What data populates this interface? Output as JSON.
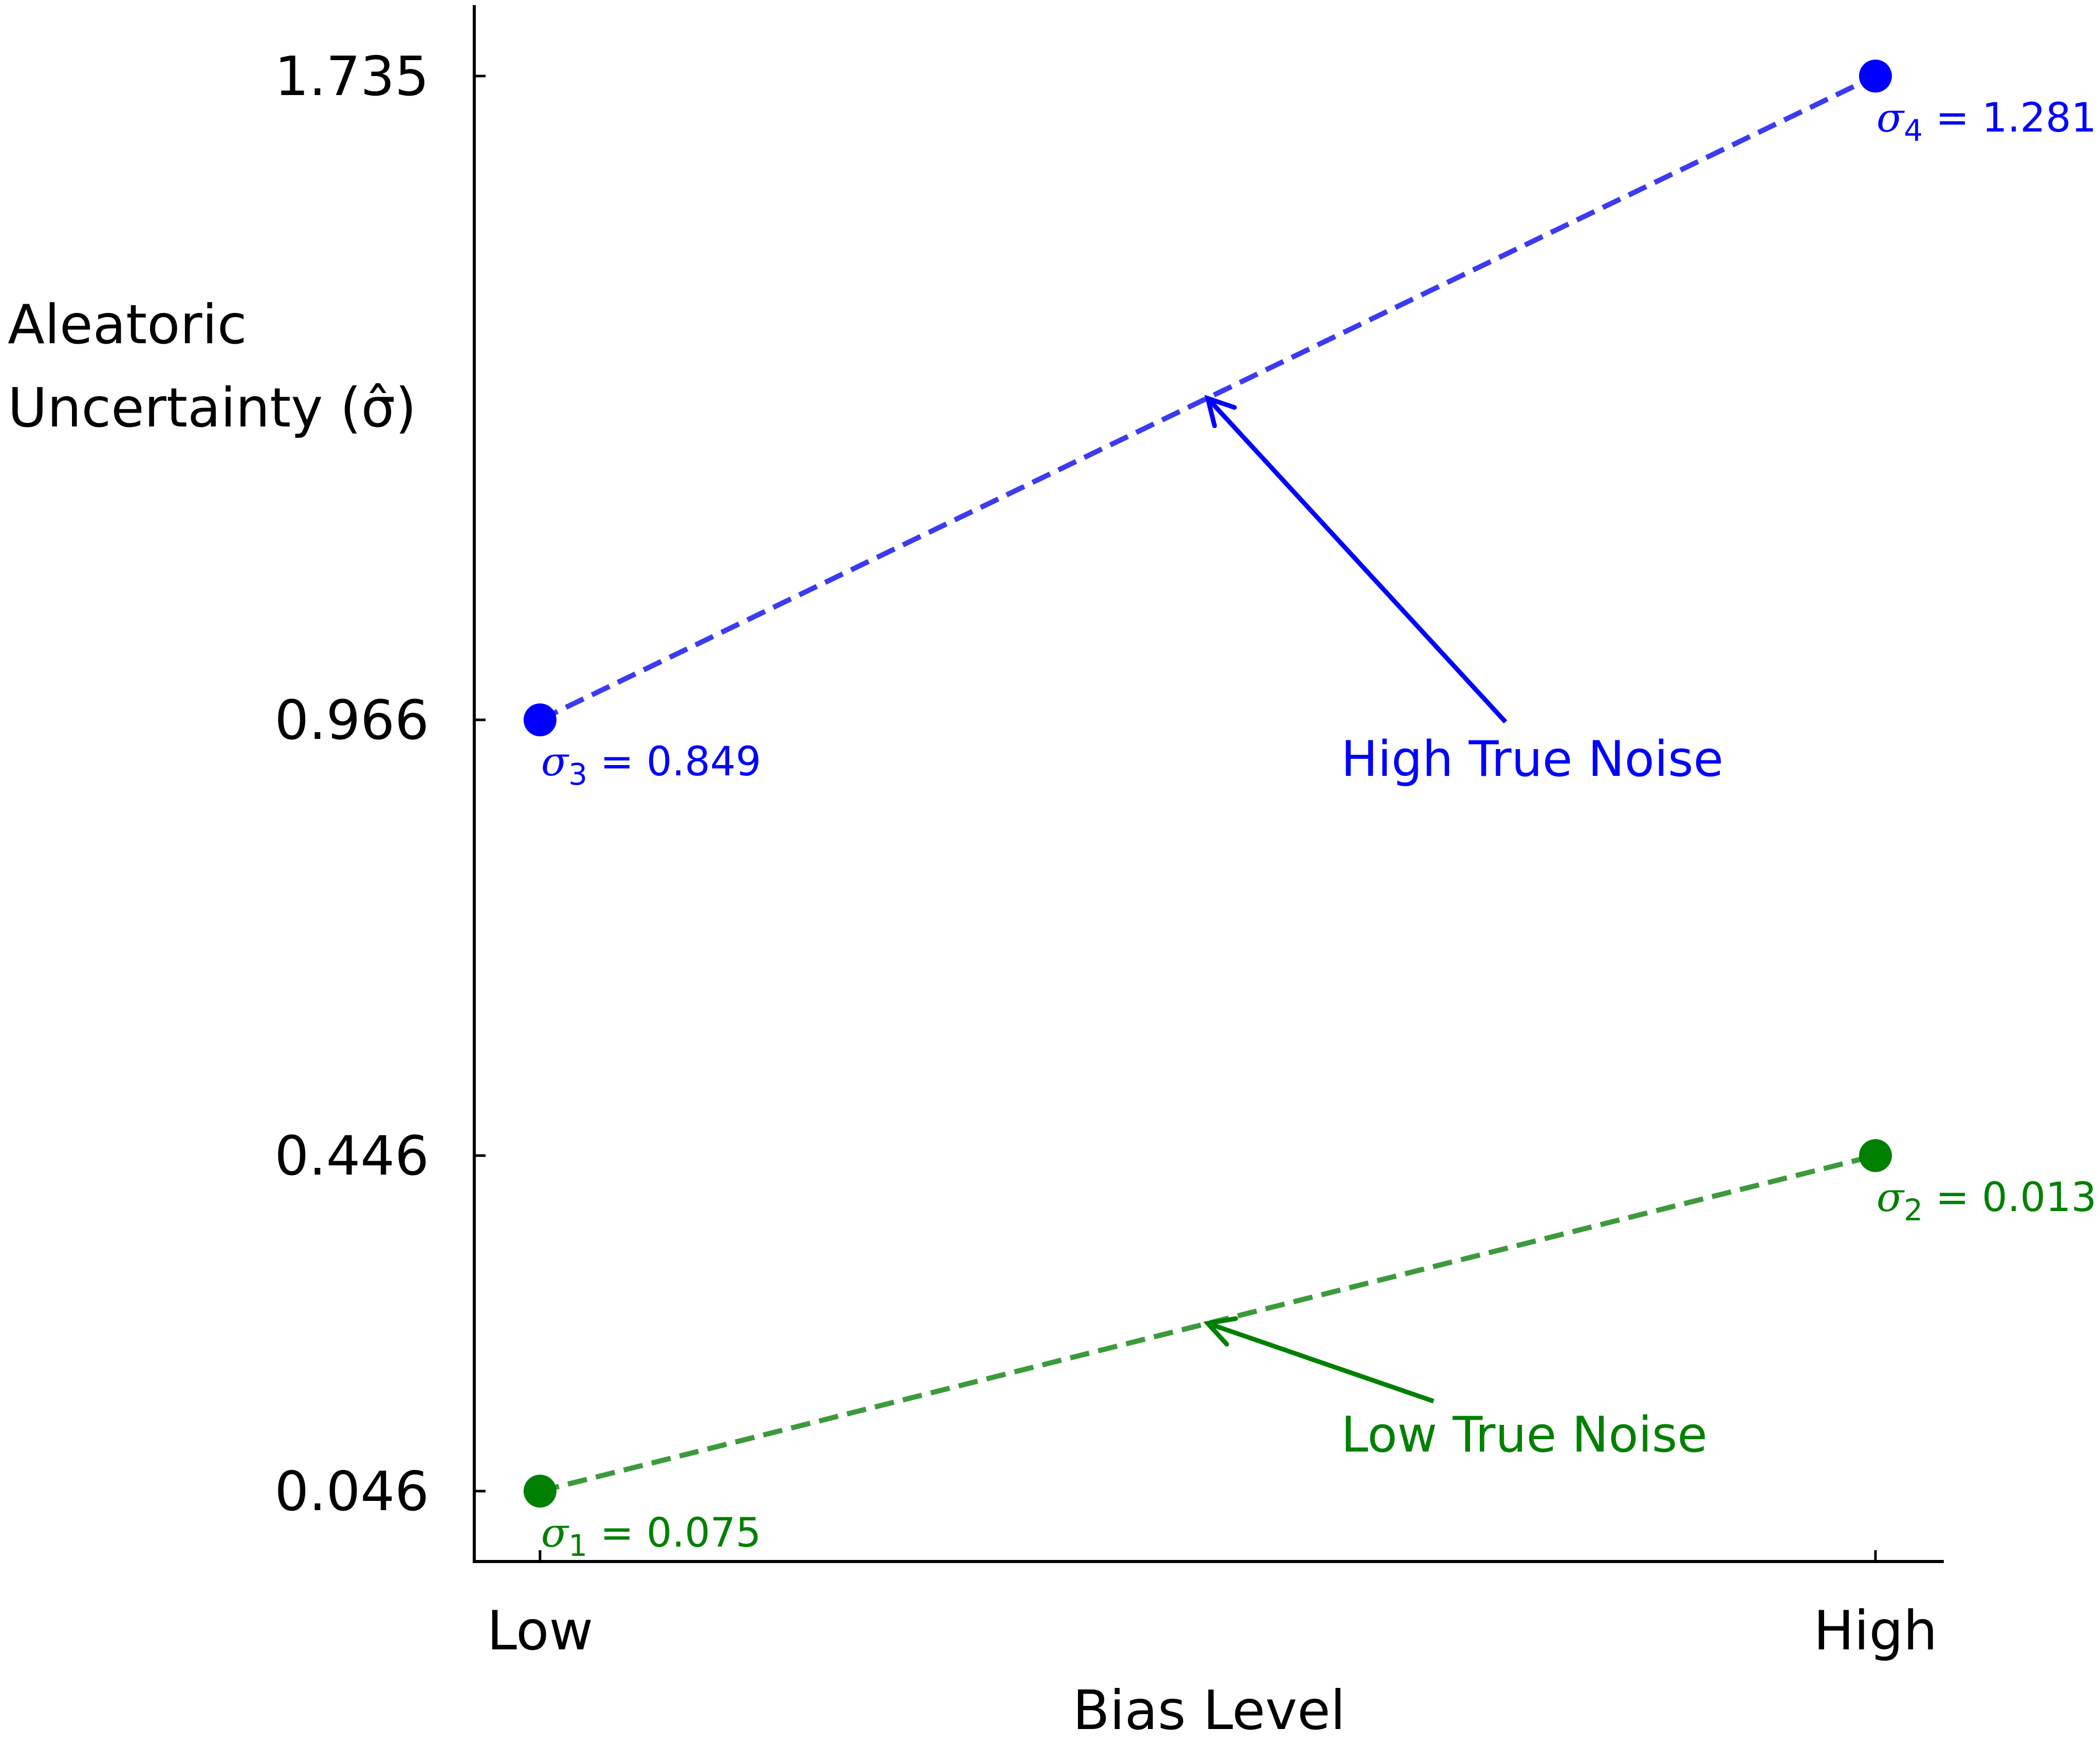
{
  "chart_data": {
    "type": "line",
    "title": "",
    "xlabel": "Bias Level",
    "ylabel_lines": [
      "Aleatoric",
      "Uncertainty (σ̂)"
    ],
    "categories": [
      "Low",
      "High"
    ],
    "y_ticks": [
      0.046,
      0.446,
      0.966,
      1.735
    ],
    "y_tick_labels": [
      "0.046",
      "0.446",
      "0.966",
      "1.735"
    ],
    "ylim": [
      -0.02,
      1.8
    ],
    "grid": false,
    "series": [
      {
        "name": "High True Noise",
        "color": "#0000ff",
        "line_color": "#3b3bf0",
        "line_style": "dashed",
        "values": [
          0.966,
          1.735
        ],
        "point_labels": [
          {
            "symbol": "σ",
            "subscript": "3",
            "text": " = 0.849"
          },
          {
            "symbol": "σ",
            "subscript": "4",
            "text": " = 1.281"
          }
        ]
      },
      {
        "name": "Low True Noise",
        "color": "#008000",
        "line_color": "#3c9a3c",
        "line_style": "dashed",
        "values": [
          0.046,
          0.446
        ],
        "point_labels": [
          {
            "symbol": "σ",
            "subscript": "1",
            "text": " = 0.075"
          },
          {
            "symbol": "σ",
            "subscript": "2",
            "text": " = 0.013"
          }
        ]
      }
    ],
    "annotations": [
      {
        "text": "High True Noise",
        "color": "#0000ff",
        "arrow_target": {
          "x": 0.5,
          "y": 1.35
        }
      },
      {
        "text": "Low True Noise",
        "color": "#008000",
        "arrow_target": {
          "x": 0.5,
          "y": 0.246
        }
      }
    ]
  }
}
